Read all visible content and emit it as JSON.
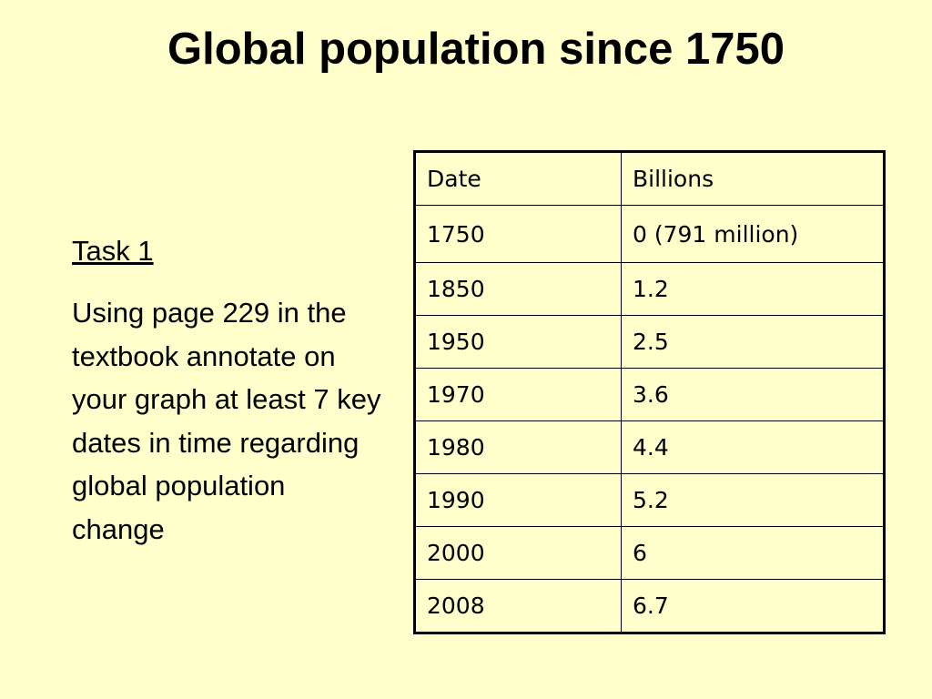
{
  "title": "Global population since 1750",
  "task": {
    "heading": "Task 1",
    "body": "Using page 229 in the textbook annotate on your graph at least 7 key dates in time regarding global population change"
  },
  "table": {
    "headers": [
      "Date",
      "Billions"
    ],
    "rows": [
      [
        "1750",
        "0 (791 million)"
      ],
      [
        "1850",
        "1.2"
      ],
      [
        "1950",
        "2.5"
      ],
      [
        "1970",
        "3.6"
      ],
      [
        "1980",
        "4.4"
      ],
      [
        "1990",
        "5.2"
      ],
      [
        "2000",
        "6"
      ],
      [
        "2008",
        "6.7"
      ]
    ]
  }
}
